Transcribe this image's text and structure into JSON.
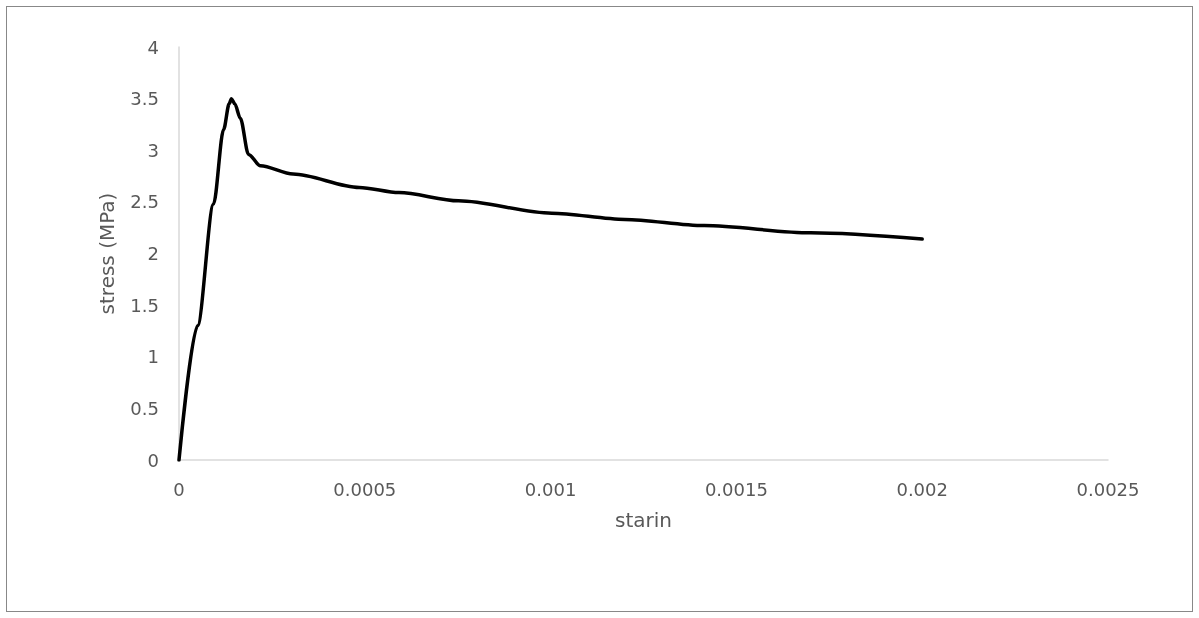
{
  "chart_data": {
    "type": "line",
    "xlabel": "starin",
    "ylabel": "stress (MPa)",
    "series": [
      {
        "color": "#000000",
        "x": [
          0,
          5e-05,
          9.3e-05,
          0.00012,
          0.000135,
          0.000141,
          0.00015,
          0.000165,
          0.000187,
          0.000219,
          0.000307,
          0.000485,
          0.000592,
          0.000752,
          0.001003,
          0.0012,
          0.001413,
          0.0017,
          0.002
        ],
        "values": [
          0,
          1.3,
          2.48,
          3.2,
          3.45,
          3.5,
          3.45,
          3.31,
          2.96,
          2.85,
          2.77,
          2.64,
          2.59,
          2.51,
          2.39,
          2.33,
          2.27,
          2.2,
          2.14
        ]
      }
    ],
    "xlim": [
      0,
      0.0025
    ],
    "xticks": [
      0,
      0.0005,
      0.001,
      0.0015,
      0.002,
      0.0025
    ],
    "ylim": [
      0,
      4
    ],
    "yticks": [
      0,
      0.5,
      1,
      1.5,
      2,
      2.5,
      3,
      3.5,
      4
    ],
    "grid": false,
    "marker": "none",
    "line_style": "solid"
  }
}
